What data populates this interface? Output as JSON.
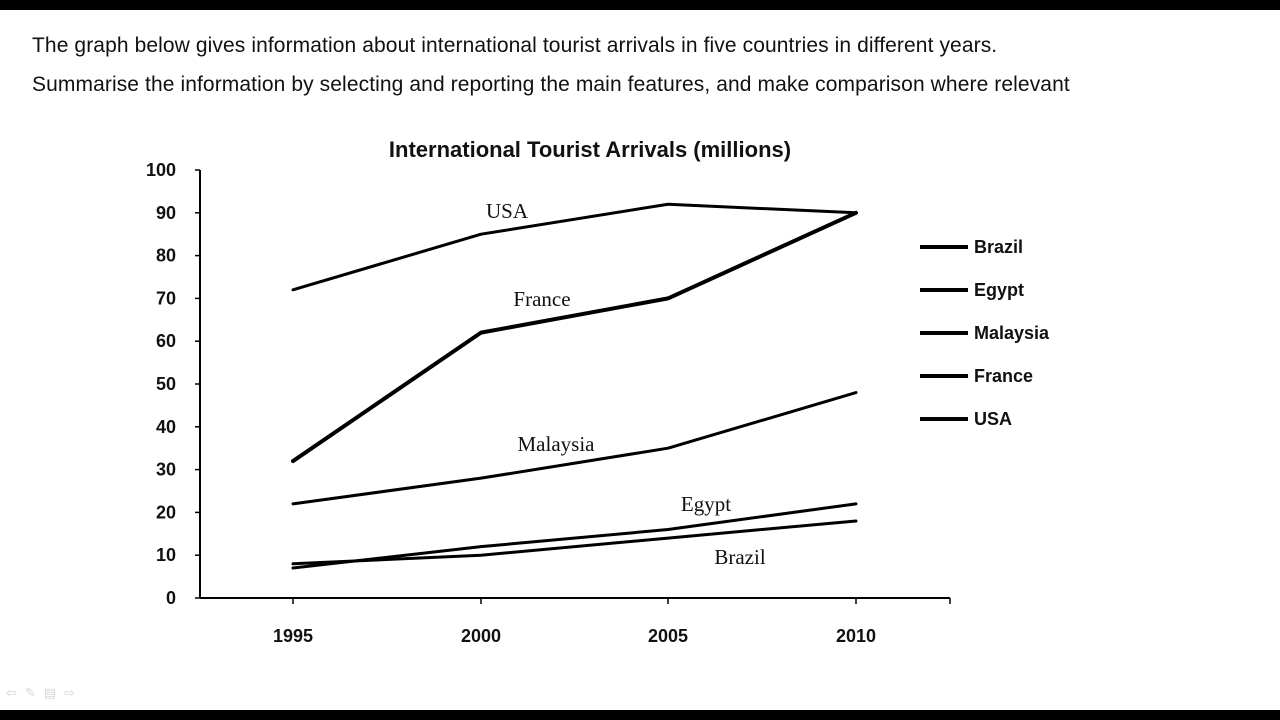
{
  "prompt": {
    "line1": "The graph below gives information about international tourist arrivals in five countries in different years.",
    "line2": "Summarise the information by selecting and reporting the main features, and make comparison where relevant"
  },
  "controls": {
    "prev_icon": "arrow-left-icon",
    "pen_icon": "pen-icon",
    "menu_icon": "menu-icon",
    "next_icon": "arrow-right-icon"
  },
  "chart_data": {
    "type": "line",
    "title": "International Tourist Arrivals (millions)",
    "xlabel": "",
    "ylabel": "",
    "x": [
      "1995",
      "2000",
      "2005",
      "2010"
    ],
    "ylim": [
      0,
      100
    ],
    "yticks": [
      0,
      10,
      20,
      30,
      40,
      50,
      60,
      70,
      80,
      90,
      100
    ],
    "grid": false,
    "legend_position": "right",
    "series": [
      {
        "name": "Brazil",
        "values": [
          8,
          10,
          14,
          18
        ],
        "color": "#000000"
      },
      {
        "name": "Egypt",
        "values": [
          7,
          12,
          16,
          22
        ],
        "color": "#000000"
      },
      {
        "name": "Malaysia",
        "values": [
          22,
          28,
          35,
          48
        ],
        "color": "#000000"
      },
      {
        "name": "France",
        "values": [
          32,
          62,
          70,
          90
        ],
        "color": "#000000"
      },
      {
        "name": "USA",
        "values": [
          72,
          85,
          92,
          90
        ],
        "color": "#000000"
      }
    ],
    "annotations": [
      {
        "text": "USA",
        "series": "USA"
      },
      {
        "text": "France",
        "series": "France"
      },
      {
        "text": "Malaysia",
        "series": "Malaysia"
      },
      {
        "text": "Egypt",
        "series": "Egypt"
      },
      {
        "text": "Brazil",
        "series": "Brazil"
      }
    ]
  }
}
